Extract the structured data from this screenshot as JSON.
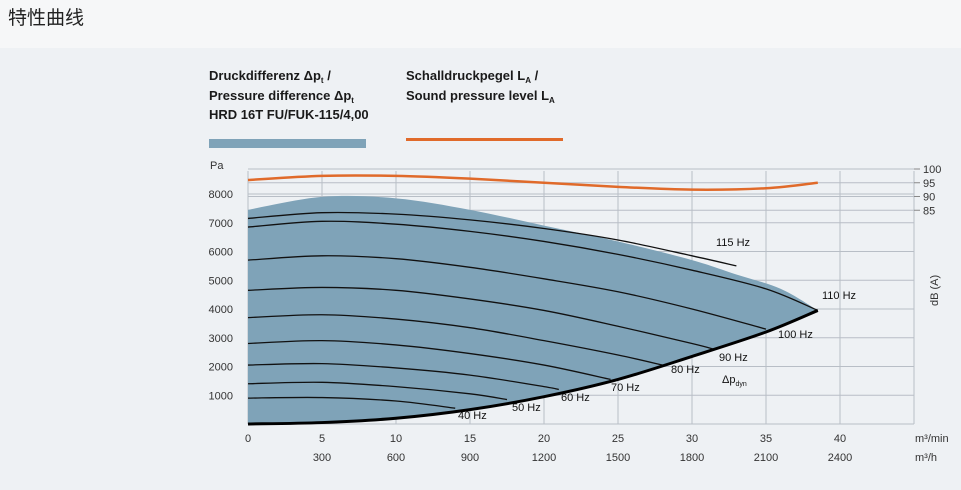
{
  "page": {
    "title": "特性曲线"
  },
  "legend": {
    "pressure": {
      "line1_prefix": "Druckdifferenz Δp",
      "line1_sub": "t",
      "line1_suffix": " /",
      "line2_prefix": "Pressure difference Δp",
      "line2_sub": "t",
      "line3": "HRD 16T FU/FUK-115/4,00",
      "color": "#7fa3b8"
    },
    "sound": {
      "line1_prefix": "Schalldruckpegel L",
      "line1_sub": "A",
      "line1_suffix": " /",
      "line2_prefix": "Sound pressure level L",
      "line2_sub": "A",
      "color": "#e06a2a"
    }
  },
  "chart_data": {
    "type": "line",
    "x_unit": "m³/min",
    "x_unit_alt": "m³/h",
    "x_ticks": [
      "0",
      "5",
      "10",
      "15",
      "20",
      "25",
      "30",
      "35",
      "40"
    ],
    "x_ticks_alt": [
      "300",
      "600",
      "900",
      "1200",
      "1500",
      "1800",
      "2100",
      "2400"
    ],
    "xlim": [
      0,
      45
    ],
    "y_unit": "Pa",
    "y_ticks": [
      "1000",
      "2000",
      "3000",
      "4000",
      "5000",
      "6000",
      "7000",
      "8000"
    ],
    "ylim": [
      0,
      8800
    ],
    "y2_label": "dB (A)",
    "y2_ticks": [
      "100",
      "95",
      "90",
      "85"
    ],
    "grid": true,
    "series": [
      {
        "name": "115 Hz",
        "x": [
          0,
          5,
          10,
          15,
          20,
          25,
          30,
          33
        ],
        "y": [
          7150,
          7350,
          7300,
          7100,
          6800,
          6400,
          5850,
          5500
        ]
      },
      {
        "name": "110 Hz",
        "x": [
          0,
          5,
          10,
          15,
          20,
          25,
          30,
          35,
          38.5
        ],
        "y": [
          6850,
          7050,
          6950,
          6700,
          6350,
          5900,
          5350,
          4700,
          3950
        ]
      },
      {
        "name": "100 Hz",
        "x": [
          0,
          5,
          10,
          15,
          20,
          25,
          30,
          35
        ],
        "y": [
          5700,
          5850,
          5750,
          5450,
          5050,
          4600,
          4000,
          3300
        ]
      },
      {
        "name": "90 Hz",
        "x": [
          0,
          5,
          10,
          15,
          20,
          25,
          30,
          31.5
        ],
        "y": [
          4650,
          4750,
          4650,
          4350,
          3950,
          3400,
          2800,
          2600
        ]
      },
      {
        "name": "80 Hz",
        "x": [
          0,
          5,
          10,
          15,
          20,
          25,
          28
        ],
        "y": [
          3700,
          3800,
          3650,
          3350,
          2900,
          2400,
          2050
        ]
      },
      {
        "name": "70 Hz",
        "x": [
          0,
          5,
          10,
          15,
          20,
          24.5
        ],
        "y": [
          2800,
          2900,
          2750,
          2450,
          2050,
          1550
        ]
      },
      {
        "name": "60 Hz",
        "x": [
          0,
          5,
          10,
          15,
          20,
          21
        ],
        "y": [
          2050,
          2100,
          1950,
          1700,
          1300,
          1200
        ]
      },
      {
        "name": "50 Hz",
        "x": [
          0,
          5,
          10,
          15,
          17.5
        ],
        "y": [
          1400,
          1450,
          1300,
          1050,
          850
        ]
      },
      {
        "name": "40 Hz",
        "x": [
          0,
          5,
          10,
          14
        ],
        "y": [
          900,
          920,
          800,
          550
        ]
      }
    ],
    "dyn_label": "Δp",
    "dyn_label_sub": "dyn",
    "dyn_curve": {
      "x": [
        0,
        5,
        10,
        15,
        20,
        25,
        30,
        35,
        38.5
      ],
      "y": [
        0,
        50,
        200,
        500,
        950,
        1550,
        2350,
        3200,
        3950
      ]
    },
    "envelope": {
      "x": [
        0,
        5,
        10,
        15,
        20,
        25,
        30,
        33,
        36,
        38.5
      ],
      "y": [
        7450,
        7900,
        7850,
        7450,
        6900,
        6350,
        5700,
        5200,
        4700,
        3950
      ]
    },
    "sound_curve": {
      "x": [
        0,
        5,
        10,
        15,
        20,
        25,
        30,
        35,
        38.5
      ],
      "y": [
        96,
        97.5,
        97.5,
        96.5,
        95,
        93.5,
        92.5,
        93,
        95
      ]
    }
  }
}
